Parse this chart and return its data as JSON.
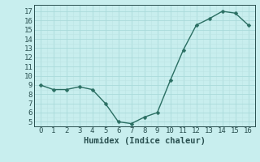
{
  "x": [
    0,
    1,
    2,
    3,
    4,
    5,
    6,
    7,
    8,
    9,
    10,
    11,
    12,
    13,
    14,
    15,
    16
  ],
  "y": [
    9.0,
    8.5,
    8.5,
    8.8,
    8.5,
    7.0,
    5.0,
    4.8,
    5.5,
    6.0,
    9.5,
    12.8,
    15.5,
    16.2,
    17.0,
    16.8,
    15.5
  ],
  "xlabel": "Humidex (Indice chaleur)",
  "line_color": "#2a6e62",
  "marker_color": "#2a6e62",
  "bg_color": "#c8eeee",
  "grid_major_color": "#aadada",
  "grid_minor_color": "#bce4e4",
  "ylim": [
    4.5,
    17.7
  ],
  "xlim": [
    -0.5,
    16.5
  ],
  "yticks": [
    5,
    6,
    7,
    8,
    9,
    10,
    11,
    12,
    13,
    14,
    15,
    16,
    17
  ],
  "xticks": [
    0,
    1,
    2,
    3,
    4,
    5,
    6,
    7,
    8,
    9,
    10,
    11,
    12,
    13,
    14,
    15,
    16
  ],
  "tick_color": "#2a5050",
  "label_fontsize": 7.5,
  "tick_fontsize": 6.5
}
